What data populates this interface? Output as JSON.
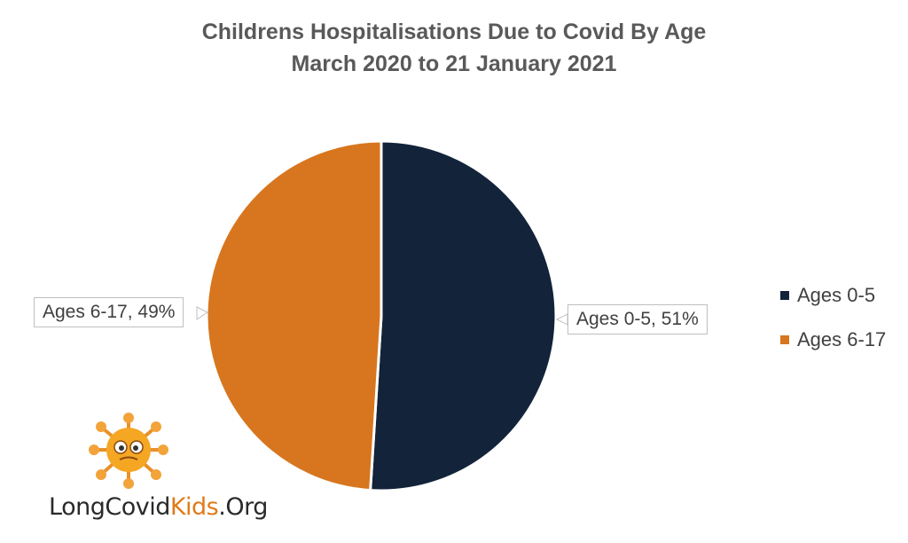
{
  "chart_data": {
    "type": "pie",
    "title": "Childrens Hospitalisations Due to Covid By Age",
    "subtitle": "March 2020 to 21 January 2021",
    "slices": [
      {
        "label": "Ages 0-5",
        "value": 51,
        "color": "#12233a",
        "data_label": "Ages 0-5, 51%"
      },
      {
        "label": "Ages 6-17",
        "value": 49,
        "color": "#d7761f",
        "data_label": "Ages 6-17, 49%"
      }
    ],
    "legend_position": "right"
  },
  "logo": {
    "text_main": "LongCovid",
    "text_accent": "Kids",
    "text_end": ".Org"
  }
}
